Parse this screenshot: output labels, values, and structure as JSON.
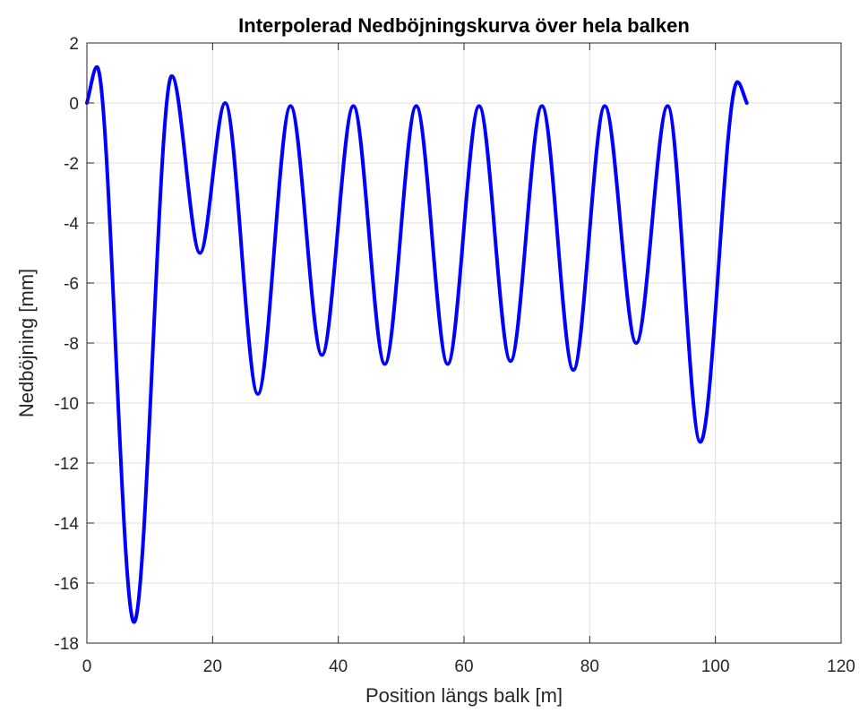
{
  "chart_data": {
    "type": "line",
    "title": "Interpolerad Nedböjningskurva över hela balken",
    "xlabel": "Position längs balk [m]",
    "ylabel": "Nedböjning [mm]",
    "xlim": [
      0,
      120
    ],
    "ylim": [
      -18,
      2
    ],
    "xticks": [
      0,
      20,
      40,
      60,
      80,
      100,
      120
    ],
    "yticks": [
      2,
      0,
      -2,
      -4,
      -6,
      -8,
      -10,
      -12,
      -14,
      -16,
      -18
    ],
    "xtick_labels": [
      "0",
      "20",
      "40",
      "60",
      "80",
      "100",
      "120"
    ],
    "ytick_labels": [
      "2",
      "0",
      "-2",
      "-4",
      "-6",
      "-8",
      "-10",
      "-12",
      "-14",
      "-16",
      "-18"
    ],
    "grid": true,
    "line_color": "#0000ff",
    "series": [
      {
        "x": [
          0,
          1.6,
          7.5,
          13.5,
          18,
          22,
          27.2,
          32.4,
          37.4,
          42.4,
          47.4,
          52.4,
          57.4,
          62.4,
          67.4,
          72.4,
          77.4,
          82.4,
          87.4,
          92.4,
          97.6,
          103.5,
          105
        ],
        "values": [
          0,
          1.2,
          -17.3,
          0.9,
          -5.0,
          0.0,
          -9.7,
          -0.1,
          -8.4,
          -0.1,
          -8.7,
          -0.1,
          -8.7,
          -0.1,
          -8.6,
          -0.1,
          -8.9,
          -0.1,
          -8.0,
          -0.1,
          -11.3,
          0.7,
          0.0
        ]
      }
    ]
  }
}
